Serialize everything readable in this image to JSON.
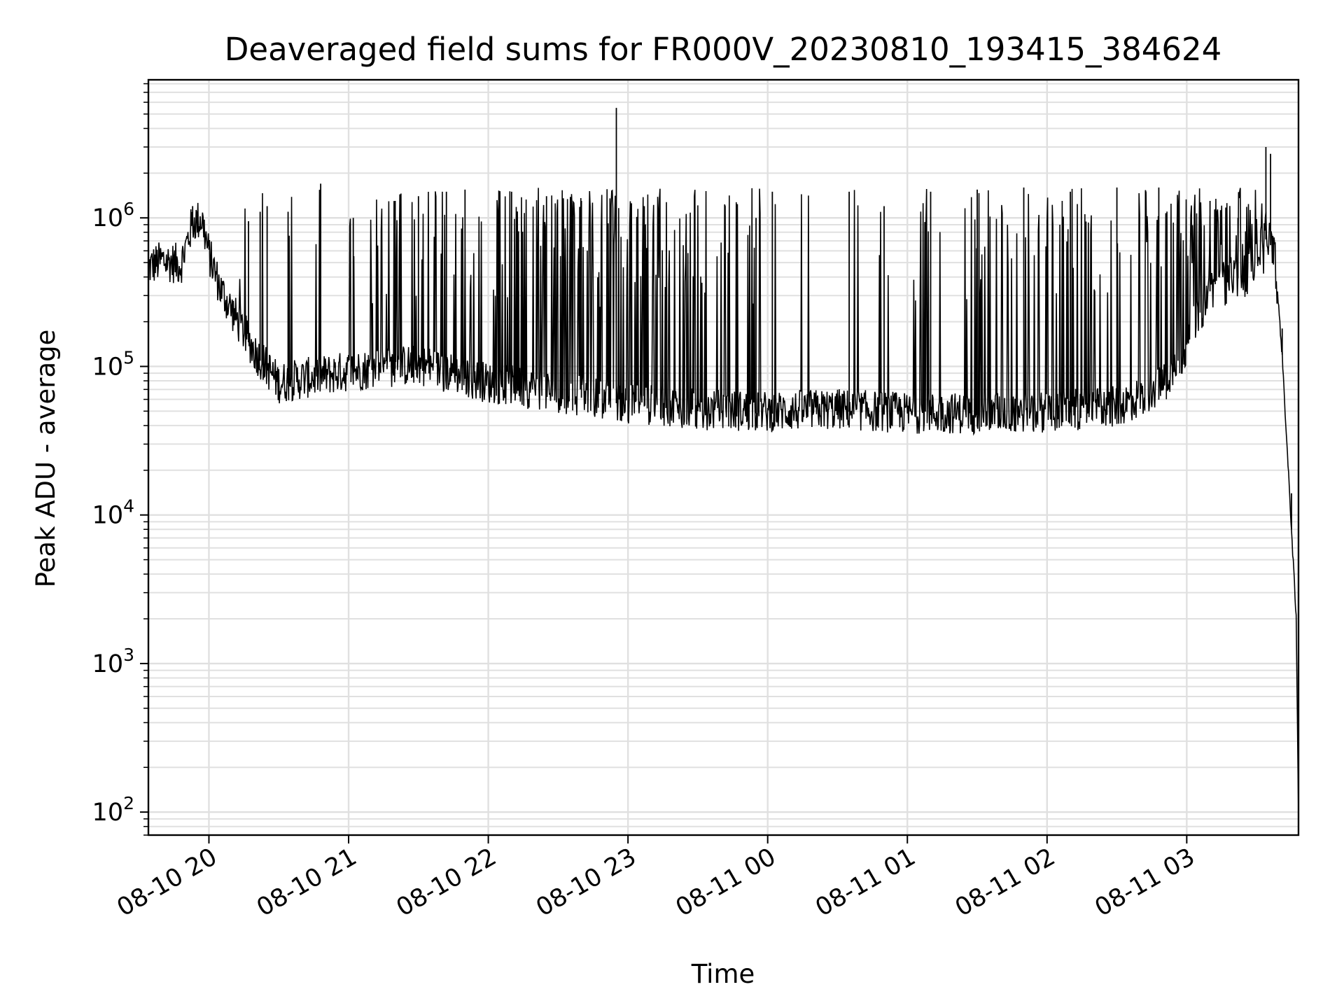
{
  "chart_data": {
    "type": "line",
    "title": "Deaveraged field sums for FR000V_20230810_193415_384624",
    "xlabel": "Time",
    "ylabel": "Peak ADU - average",
    "yscale": "log",
    "grid": true,
    "line_color": "#000000",
    "grid_color": "#e0e0e0",
    "x_tick_labels": [
      "08-10 20",
      "08-10 21",
      "08-10 22",
      "08-10 23",
      "08-11 00",
      "08-11 01",
      "08-11 02",
      "08-11 03"
    ],
    "x_ticks": [
      "2023-08-10 20:00",
      "2023-08-10 21:00",
      "2023-08-10 22:00",
      "2023-08-10 23:00",
      "2023-08-11 00:00",
      "2023-08-11 01:00",
      "2023-08-11 02:00",
      "2023-08-11 03:00"
    ],
    "xlim": [
      "2023-08-10 19:34",
      "2023-08-11 03:48"
    ],
    "y_ticks": [
      {
        "base": "10",
        "exp": "2",
        "value": 100
      },
      {
        "base": "10",
        "exp": "3",
        "value": 1000
      },
      {
        "base": "10",
        "exp": "4",
        "value": 10000
      },
      {
        "base": "10",
        "exp": "5",
        "value": 100000
      },
      {
        "base": "10",
        "exp": "6",
        "value": 1000000
      }
    ],
    "ylim": [
      70,
      8500000
    ],
    "series": [
      {
        "baseline": {
          "x": [
            "2023-08-10 19:34",
            "2023-08-10 19:40",
            "2023-08-10 19:48",
            "2023-08-10 19:53",
            "2023-08-10 19:57",
            "2023-08-10 20:00",
            "2023-08-10 20:05",
            "2023-08-10 20:12",
            "2023-08-10 20:20",
            "2023-08-10 20:30",
            "2023-08-10 20:40",
            "2023-08-10 21:00",
            "2023-08-10 21:30",
            "2023-08-10 22:00",
            "2023-08-10 22:30",
            "2023-08-10 23:00",
            "2023-08-10 23:30",
            "2023-08-11 00:00",
            "2023-08-11 00:30",
            "2023-08-11 01:00",
            "2023-08-11 01:30",
            "2023-08-11 02:00",
            "2023-08-11 02:30",
            "2023-08-11 02:40",
            "2023-08-11 02:50",
            "2023-08-11 03:00",
            "2023-08-11 03:10",
            "2023-08-11 03:20",
            "2023-08-11 03:25",
            "2023-08-11 03:29",
            "2023-08-11 03:32",
            "2023-08-11 03:35",
            "2023-08-11 03:38",
            "2023-08-11 03:41",
            "2023-08-11 03:43",
            "2023-08-11 03:45",
            "2023-08-11 03:47",
            "2023-08-11 03:48"
          ],
          "y": [
            450000,
            500000,
            470000,
            900000,
            950000,
            550000,
            320000,
            200000,
            120000,
            75000,
            80000,
            90000,
            100000,
            75000,
            65000,
            55000,
            50000,
            48000,
            50000,
            47000,
            47000,
            48000,
            52000,
            60000,
            75000,
            130000,
            320000,
            400000,
            380000,
            480000,
            650000,
            750000,
            500000,
            120000,
            30000,
            8000,
            2000,
            100
          ]
        },
        "spikes": [
          {
            "x": "2023-08-10 19:53",
            "y": 1200000
          },
          {
            "x": "2023-08-10 20:17",
            "y": 950000
          },
          {
            "x": "2023-08-10 20:22",
            "y": 1100000
          },
          {
            "x": "2023-08-10 20:25",
            "y": 1200000
          },
          {
            "x": "2023-08-10 20:34",
            "y": 1100000
          },
          {
            "x": "2023-08-10 20:48",
            "y": 1700000
          },
          {
            "x": "2023-08-10 21:02",
            "y": 1000000
          },
          {
            "x": "2023-08-10 21:20",
            "y": 1300000
          },
          {
            "x": "2023-08-10 21:30",
            "y": 1400000
          },
          {
            "x": "2023-08-10 21:42",
            "y": 1500000
          },
          {
            "x": "2023-08-10 21:50",
            "y": 1550000
          },
          {
            "x": "2023-08-10 22:10",
            "y": 1500000
          },
          {
            "x": "2023-08-10 22:25",
            "y": 1400000
          },
          {
            "x": "2023-08-10 22:40",
            "y": 1300000
          },
          {
            "x": "2023-08-10 22:55",
            "y": 5500000
          },
          {
            "x": "2023-08-10 23:07",
            "y": 1200000
          },
          {
            "x": "2023-08-10 23:30",
            "y": 750000
          },
          {
            "x": "2023-08-10 23:55",
            "y": 1000000
          },
          {
            "x": "2023-08-11 00:02",
            "y": 1500000
          },
          {
            "x": "2023-08-11 00:35",
            "y": 1500000
          },
          {
            "x": "2023-08-11 00:50",
            "y": 1200000
          },
          {
            "x": "2023-08-11 01:10",
            "y": 1500000
          },
          {
            "x": "2023-08-11 01:30",
            "y": 1550000
          },
          {
            "x": "2023-08-11 01:50",
            "y": 1600000
          },
          {
            "x": "2023-08-11 02:10",
            "y": 1500000
          },
          {
            "x": "2023-08-11 02:30",
            "y": 1600000
          },
          {
            "x": "2023-08-11 02:48",
            "y": 1600000
          },
          {
            "x": "2023-08-11 03:10",
            "y": 1300000
          },
          {
            "x": "2023-08-11 03:22",
            "y": 1000000
          },
          {
            "x": "2023-08-11 03:34",
            "y": 3000000
          },
          {
            "x": "2023-08-11 03:36",
            "y": 2700000
          },
          {
            "x": "2023-08-11 03:41",
            "y": 180000
          },
          {
            "x": "2023-08-11 03:45",
            "y": 14000
          }
        ]
      }
    ]
  }
}
